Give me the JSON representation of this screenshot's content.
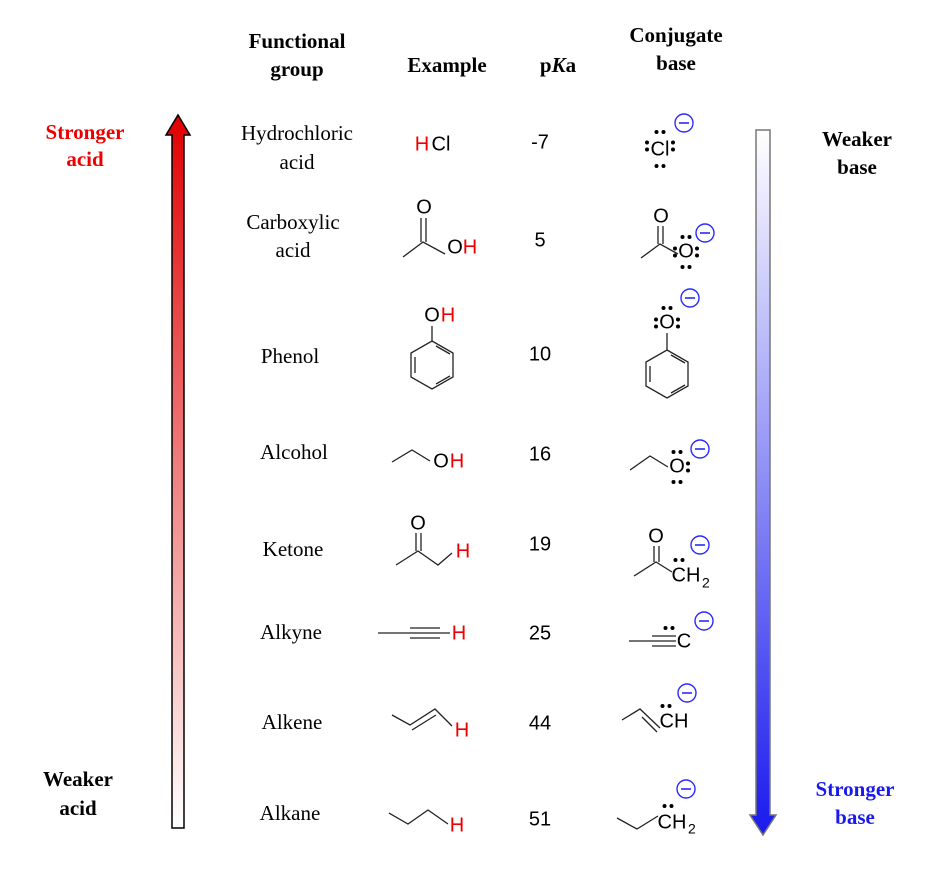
{
  "headers": {
    "functional_group": [
      "Functional",
      "group"
    ],
    "example": "Example",
    "pka": [
      "p",
      "K",
      "a"
    ],
    "conjugate_base": [
      "Conjugate",
      "base"
    ]
  },
  "left_labels": {
    "top": [
      "Stronger",
      "acid"
    ],
    "bottom": [
      "Weaker",
      "acid"
    ]
  },
  "right_labels": {
    "top": [
      "Weaker",
      "base"
    ],
    "bottom": [
      "Stronger",
      "base"
    ]
  },
  "rows": [
    {
      "name": [
        "Hydrochloric",
        "acid"
      ],
      "example": [
        "H",
        "Cl"
      ],
      "pka": -7,
      "conjugate_base": [
        "Cl"
      ]
    },
    {
      "name": [
        "Carboxylic",
        "acid"
      ],
      "example": [
        "O",
        "O",
        "H"
      ],
      "pka": 5,
      "conjugate_base": [
        "O",
        "O"
      ]
    },
    {
      "name": [
        "Phenol"
      ],
      "example": [
        "O",
        "H"
      ],
      "pka": 10,
      "conjugate_base": [
        "O"
      ]
    },
    {
      "name": [
        "Alcohol"
      ],
      "example": [
        "O",
        "H"
      ],
      "pka": 16,
      "conjugate_base": [
        "O"
      ]
    },
    {
      "name": [
        "Ketone"
      ],
      "example": [
        "O",
        "H"
      ],
      "pka": 19,
      "conjugate_base": [
        "O",
        "CH",
        "2"
      ]
    },
    {
      "name": [
        "Alkyne"
      ],
      "example": [
        "H"
      ],
      "pka": 25,
      "conjugate_base": [
        "C"
      ]
    },
    {
      "name": [
        "Alkene"
      ],
      "example": [
        "H"
      ],
      "pka": 44,
      "conjugate_base": [
        "CH"
      ]
    },
    {
      "name": [
        "Alkane"
      ],
      "example": [
        "H"
      ],
      "pka": 51,
      "conjugate_base": [
        "CH",
        "2"
      ]
    }
  ]
}
